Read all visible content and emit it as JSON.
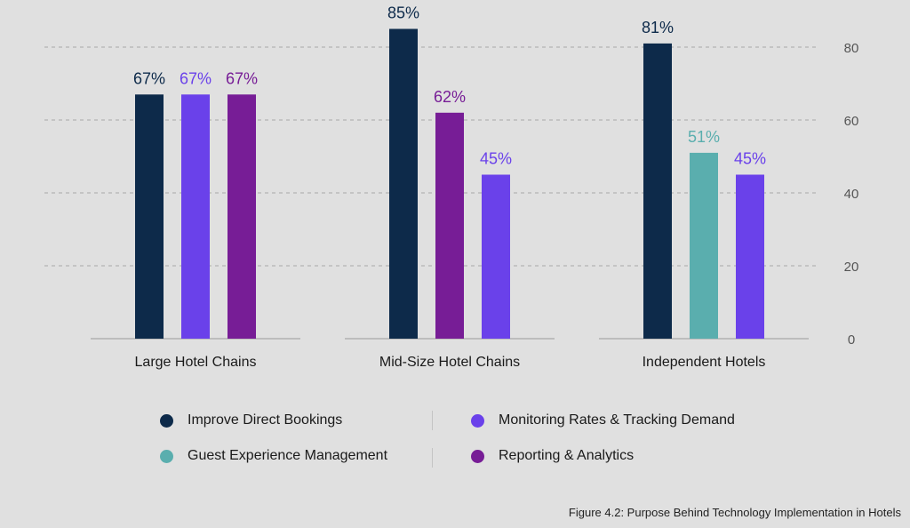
{
  "chart_data": {
    "type": "bar",
    "categories": [
      "Large Hotel Chains",
      "Mid-Size Hotel Chains",
      "Independent Hotels"
    ],
    "groups": [
      {
        "category": "Large Hotel Chains",
        "bars": [
          {
            "series": "Improve Direct Bookings",
            "value": 67,
            "label": "67%"
          },
          {
            "series": "Monitoring Rates & Tracking Demand",
            "value": 67,
            "label": "67%"
          },
          {
            "series": "Reporting & Analytics",
            "value": 67,
            "label": "67%"
          }
        ]
      },
      {
        "category": "Mid-Size Hotel Chains",
        "bars": [
          {
            "series": "Improve Direct Bookings",
            "value": 85,
            "label": "85%"
          },
          {
            "series": "Reporting & Analytics",
            "value": 62,
            "label": "62%"
          },
          {
            "series": "Monitoring Rates & Tracking Demand",
            "value": 45,
            "label": "45%"
          }
        ]
      },
      {
        "category": "Independent Hotels",
        "bars": [
          {
            "series": "Improve Direct Bookings",
            "value": 81,
            "label": "81%"
          },
          {
            "series": "Guest Experience Management",
            "value": 51,
            "label": "51%"
          },
          {
            "series": "Monitoring Rates & Tracking Demand",
            "value": 45,
            "label": "45%"
          }
        ]
      }
    ],
    "series": [
      {
        "name": "Improve Direct Bookings",
        "color": "#0d2a4a"
      },
      {
        "name": "Monitoring Rates & Tracking Demand",
        "color": "#6a41ea"
      },
      {
        "name": "Guest Experience Management",
        "color": "#5aaeae"
      },
      {
        "name": "Reporting & Analytics",
        "color": "#771d96"
      }
    ],
    "y_ticks": [
      "0",
      "20",
      "40",
      "60",
      "80"
    ],
    "ylim": [
      0,
      90
    ],
    "y_axis_side": "right",
    "grid": "dashed horizontal",
    "legend_position": "bottom"
  },
  "legend": {
    "items": [
      {
        "label": "Improve Direct Bookings",
        "color": "#0d2a4a"
      },
      {
        "label": "Monitoring Rates & Tracking Demand",
        "color": "#6a41ea"
      },
      {
        "label": "Guest Experience Management",
        "color": "#5aaeae"
      },
      {
        "label": "Reporting & Analytics",
        "color": "#771d96"
      }
    ]
  },
  "caption": "Figure 4.2: Purpose Behind Technology Implementation in Hotels"
}
